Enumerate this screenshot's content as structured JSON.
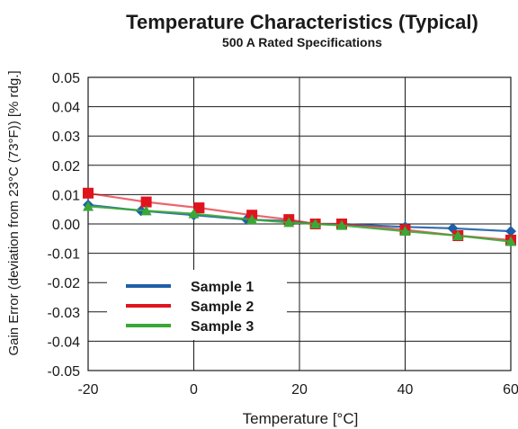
{
  "chart_data": {
    "type": "line",
    "title": "Temperature Characteristics (Typical)",
    "subtitle": "500 A Rated Specifications",
    "xlabel": "Temperature [°C]",
    "ylabel": "Gain Error (deviation from 23°C (73°F)) [% rdg.]",
    "xlim": [
      -20,
      60
    ],
    "ylim": [
      -0.05,
      0.05
    ],
    "x_ticks": [
      "-20",
      "0",
      "20",
      "40",
      "60"
    ],
    "y_ticks": [
      "0.05",
      "0.04",
      "0.03",
      "0.02",
      "0.01",
      "0.00",
      "-0.01",
      "-0.02",
      "-0.03",
      "-0.04",
      "-0.05"
    ],
    "grid": true,
    "legend": "lower-left",
    "series": [
      {
        "name": "Sample 1",
        "color": "#1f5fa8",
        "marker": "diamond",
        "x": [
          -20,
          -10,
          0,
          10,
          18,
          23,
          28,
          40,
          49,
          60
        ],
        "y": [
          0.0065,
          0.0045,
          0.003,
          0.0015,
          0.001,
          0.0,
          0.0,
          -0.001,
          -0.0015,
          -0.0025
        ]
      },
      {
        "name": "Sample 2",
        "color": "#e0141e",
        "marker": "square",
        "x": [
          -20,
          -9,
          1,
          11,
          18,
          23,
          28,
          40,
          50,
          60
        ],
        "y": [
          0.0105,
          0.0075,
          0.0055,
          0.003,
          0.0015,
          0.0,
          0.0,
          -0.002,
          -0.004,
          -0.0055
        ]
      },
      {
        "name": "Sample 3",
        "color": "#3aa836",
        "marker": "triangle",
        "x": [
          -20,
          -9,
          0,
          11,
          18,
          23,
          28,
          40,
          50,
          60
        ],
        "y": [
          0.006,
          0.0045,
          0.0035,
          0.0015,
          0.0005,
          0.0,
          -0.0005,
          -0.0025,
          -0.004,
          -0.006
        ]
      }
    ]
  }
}
